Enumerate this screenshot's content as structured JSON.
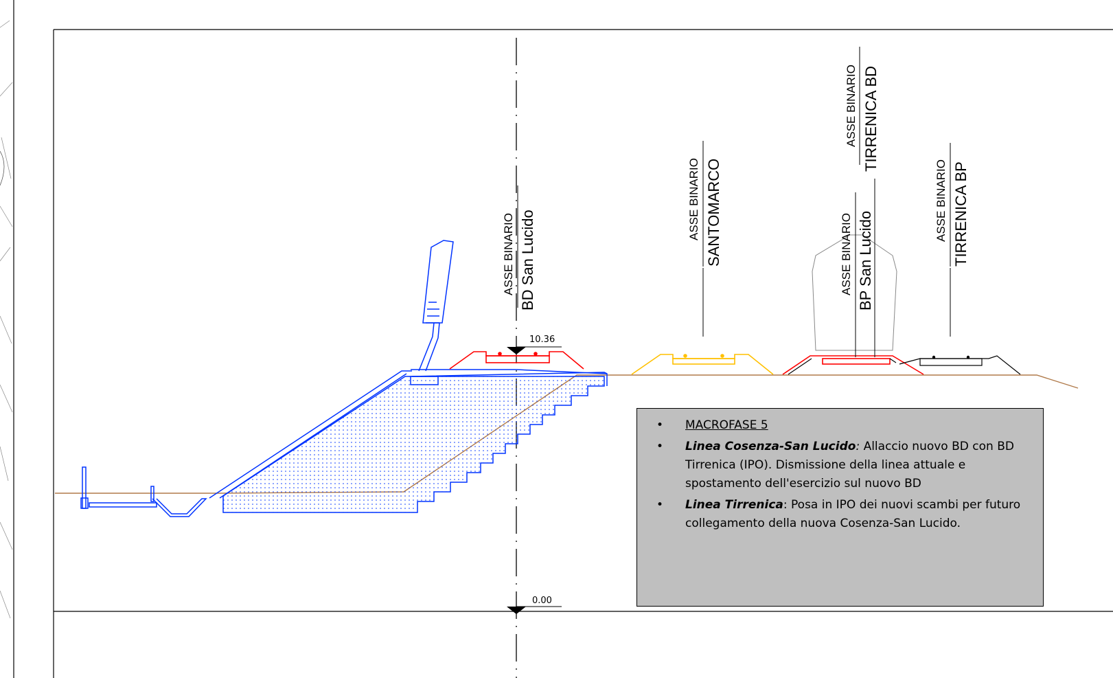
{
  "axis_labels": [
    {
      "id": "bd-san-lucido",
      "caption": "ASSE BINARIO",
      "name": "BD San Lucido"
    },
    {
      "id": "santomarco",
      "caption": "ASSE BINARIO",
      "name": "SANTOMARCO"
    },
    {
      "id": "bp-san-lucido",
      "caption": "ASSE BINARIO",
      "name": "BP San Lucido"
    },
    {
      "id": "tirrenica-bd",
      "caption": "ASSE BINARIO",
      "name": "TIRRENICA BD"
    },
    {
      "id": "tirrenica-bp",
      "caption": "ASSE BINARIO",
      "name": "TIRRENICA BP"
    }
  ],
  "elevations": {
    "top": "10.36",
    "bottom": "0.00"
  },
  "note": {
    "phase": "MACROFASE 5",
    "item1_title": "Linea Cosenza-San Lucido",
    "item1_sep": ":",
    "item1_text": " Allaccio nuovo BD con BD Tirrenica (IPO). Dismissione della linea attuale e spostamento dell'esercizio sul nuovo BD",
    "item2_title": "Linea Tirrenica",
    "item2_sep": ":",
    "item2_text": " Posa in IPO dei nuovi scambi per futuro collegamento della nuova Cosenza-San Lucido."
  },
  "colors": {
    "structure": "#0033ff",
    "ballast_red": "#ff0000",
    "ballast_yellow": "#ffc000",
    "ground": "#b07a4a",
    "frame": "#000000",
    "note_bg": "#bfbfbf"
  }
}
